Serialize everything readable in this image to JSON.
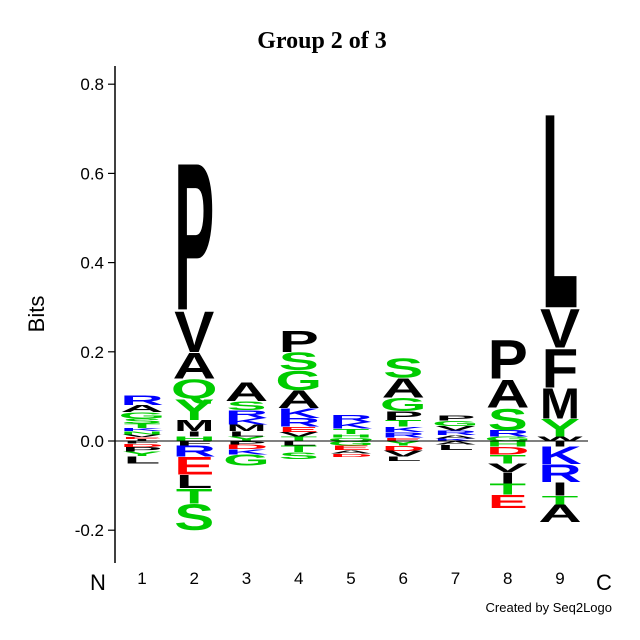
{
  "chart_data": {
    "type": "sequence-logo",
    "title": "Group 2 of 3",
    "ylabel": "Bits",
    "ylim": [
      -0.27,
      0.84
    ],
    "yticks": [
      {
        "value": 0.8,
        "label": "0.8"
      },
      {
        "value": 0.6,
        "label": "0.6"
      },
      {
        "value": 0.4,
        "label": "0.4"
      },
      {
        "value": 0.2,
        "label": "0.2"
      },
      {
        "value": 0.0,
        "label": "0.0"
      },
      {
        "value": -0.2,
        "label": "-0.2"
      }
    ],
    "n_label": "N",
    "c_label": "C",
    "credit": "Created by Seq2Logo",
    "colors": {
      "hydrophobic": "#000000",
      "polar": "#00cc00",
      "basic": "#0000ff",
      "acidic": "#ff0000"
    },
    "positions": [
      {
        "label": "1",
        "positive": [
          [
            "I",
            0.005
          ],
          [
            "E",
            0.004
          ],
          [
            "V",
            0.006
          ],
          [
            "N",
            0.007
          ],
          [
            "K",
            0.007
          ],
          [
            "T",
            0.01
          ],
          [
            "S",
            0.012
          ],
          [
            "G",
            0.014
          ],
          [
            "A",
            0.016
          ],
          [
            "R",
            0.022
          ]
        ],
        "negative": [
          [
            "F",
            0.006
          ],
          [
            "D",
            0.007
          ],
          [
            "P",
            0.01
          ],
          [
            "Y",
            0.011
          ],
          [
            "L",
            0.016
          ]
        ]
      },
      {
        "label": "2",
        "positive": [
          [
            "H",
            0.01
          ],
          [
            "I",
            0.012
          ],
          [
            "M",
            0.025
          ],
          [
            "Y",
            0.048
          ],
          [
            "Q",
            0.045
          ],
          [
            "A",
            0.06
          ],
          [
            "V",
            0.095
          ],
          [
            "P",
            0.34
          ]
        ],
        "negative": [
          [
            "F",
            0.01
          ],
          [
            "R",
            0.025
          ],
          [
            "E",
            0.04
          ],
          [
            "L",
            0.03
          ],
          [
            "T",
            0.035
          ],
          [
            "S",
            0.06
          ]
        ]
      },
      {
        "label": "3",
        "positive": [
          [
            "Y",
            0.01
          ],
          [
            "L",
            0.012
          ],
          [
            "M",
            0.015
          ],
          [
            "K",
            0.015
          ],
          [
            "R",
            0.018
          ],
          [
            "S",
            0.02
          ],
          [
            "A",
            0.044
          ]
        ],
        "negative": [
          [
            "P",
            0.008
          ],
          [
            "D",
            0.01
          ],
          [
            "K",
            0.012
          ],
          [
            "G",
            0.025
          ]
        ]
      },
      {
        "label": "4",
        "positive": [
          [
            "T",
            0.01
          ],
          [
            "V",
            0.01
          ],
          [
            "E",
            0.012
          ],
          [
            "R",
            0.02
          ],
          [
            "K",
            0.022
          ],
          [
            "A",
            0.04
          ],
          [
            "G",
            0.045
          ],
          [
            "S",
            0.04
          ],
          [
            "P",
            0.05
          ]
        ],
        "negative": [
          [
            "L",
            0.01
          ],
          [
            "T",
            0.015
          ],
          [
            "S",
            0.015
          ]
        ]
      },
      {
        "label": "5",
        "positive": [
          [
            "Q",
            0.008
          ],
          [
            "H",
            0.008
          ],
          [
            "T",
            0.012
          ],
          [
            "K",
            0.015
          ],
          [
            "R",
            0.016
          ]
        ],
        "negative": [
          [
            "G",
            0.01
          ],
          [
            "E",
            0.01
          ],
          [
            "A",
            0.008
          ],
          [
            "D",
            0.008
          ]
        ]
      },
      {
        "label": "6",
        "positive": [
          [
            "E",
            0.008
          ],
          [
            "R",
            0.012
          ],
          [
            "K",
            0.012
          ],
          [
            "T",
            0.015
          ],
          [
            "P",
            0.02
          ],
          [
            "G",
            0.03
          ],
          [
            "A",
            0.045
          ],
          [
            "S",
            0.045
          ]
        ],
        "negative": [
          [
            "Y",
            0.01
          ],
          [
            "D",
            0.012
          ],
          [
            "V",
            0.013
          ],
          [
            "L",
            0.01
          ]
        ]
      },
      {
        "label": "7",
        "positive": [
          [
            "K",
            0.006
          ],
          [
            "A",
            0.008
          ],
          [
            "R",
            0.01
          ],
          [
            "V",
            0.01
          ],
          [
            "G",
            0.012
          ],
          [
            "P",
            0.012
          ]
        ],
        "negative": [
          [
            "A",
            0.008
          ],
          [
            "L",
            0.012
          ]
        ]
      },
      {
        "label": "8",
        "positive": [
          [
            "G",
            0.01
          ],
          [
            "R",
            0.015
          ],
          [
            "S",
            0.05
          ],
          [
            "A",
            0.065
          ],
          [
            "P",
            0.09
          ]
        ],
        "negative": [
          [
            "H",
            0.012
          ],
          [
            "D",
            0.018
          ],
          [
            "T",
            0.02
          ],
          [
            "V",
            0.02
          ],
          [
            "I",
            0.025
          ],
          [
            "T",
            0.025
          ],
          [
            "E",
            0.03
          ]
        ]
      },
      {
        "label": "9",
        "positive": [
          [
            "W",
            0.01
          ],
          [
            "Y",
            0.04
          ],
          [
            "M",
            0.07
          ],
          [
            "F",
            0.09
          ],
          [
            "V",
            0.09
          ],
          [
            "L",
            0.45
          ]
        ],
        "negative": [
          [
            "I",
            0.012
          ],
          [
            "K",
            0.04
          ],
          [
            "R",
            0.04
          ],
          [
            "I",
            0.03
          ],
          [
            "T",
            0.02
          ],
          [
            "A",
            0.04
          ]
        ]
      }
    ]
  }
}
